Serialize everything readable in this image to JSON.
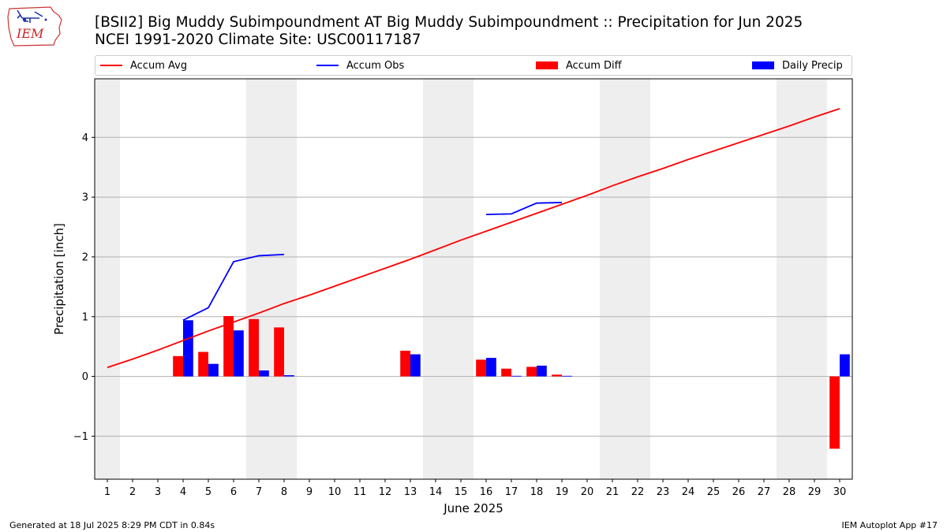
{
  "header": {
    "logo_text": "IEM",
    "title_line1": "[BSII2] Big Muddy Subimpoundment  AT Big Muddy Subimpoundment :: Precipitation for Jun 2025",
    "title_line2": "NCEI 1991-2020 Climate Site: USC00117187"
  },
  "legend": {
    "placement": "top",
    "items": [
      {
        "label": "Accum Avg",
        "kind": "line",
        "color": "#ff0000"
      },
      {
        "label": "Accum Obs",
        "kind": "line",
        "color": "#0000ff"
      },
      {
        "label": "Accum Diff",
        "kind": "patch",
        "color": "#ff0000"
      },
      {
        "label": "Daily Precip",
        "kind": "patch",
        "color": "#0000ff"
      }
    ]
  },
  "chart_data": {
    "type": "bar",
    "xlabel": "June 2025",
    "ylabel": "Precipitation [inch]",
    "xlim": [
      0.5,
      30.5
    ],
    "ylim": [
      -1.72,
      4.98
    ],
    "yticks": [
      -1,
      0,
      1,
      2,
      3,
      4
    ],
    "ytick_labels": [
      "−1",
      "0",
      "1",
      "2",
      "3",
      "4"
    ],
    "grid": "horizontal",
    "weekend_shading": [
      [
        0.5,
        1.5
      ],
      [
        6.5,
        8.5
      ],
      [
        13.5,
        15.5
      ],
      [
        20.5,
        22.5
      ],
      [
        27.5,
        29.5
      ]
    ],
    "days": [
      1,
      2,
      3,
      4,
      5,
      6,
      7,
      8,
      9,
      10,
      11,
      12,
      13,
      14,
      15,
      16,
      17,
      18,
      19,
      20,
      21,
      22,
      23,
      24,
      25,
      26,
      27,
      28,
      29,
      30
    ],
    "series": [
      {
        "name": "Accum Avg",
        "type": "line",
        "color": "#ff0000",
        "values": [
          0.15,
          0.29,
          0.44,
          0.6,
          0.76,
          0.91,
          1.06,
          1.22,
          1.36,
          1.51,
          1.66,
          1.81,
          1.96,
          2.12,
          2.28,
          2.43,
          2.58,
          2.73,
          2.88,
          3.03,
          3.19,
          3.34,
          3.48,
          3.63,
          3.77,
          3.91,
          4.05,
          4.19,
          4.34,
          4.48
        ]
      },
      {
        "name": "Accum Obs",
        "type": "line",
        "color": "#0000ff",
        "values": [
          null,
          null,
          null,
          0.94,
          1.15,
          1.92,
          2.02,
          2.04,
          null,
          null,
          null,
          null,
          null,
          null,
          null,
          2.71,
          2.72,
          2.9,
          2.91,
          null,
          null,
          null,
          null,
          null,
          null,
          null,
          null,
          null,
          null,
          null
        ]
      },
      {
        "name": "Accum Diff",
        "type": "bar",
        "color": "#ff0000",
        "values": [
          null,
          null,
          null,
          0.34,
          0.41,
          1.01,
          0.96,
          0.82,
          null,
          null,
          null,
          null,
          0.43,
          null,
          null,
          0.28,
          0.13,
          0.16,
          0.03,
          null,
          null,
          null,
          null,
          null,
          null,
          null,
          null,
          null,
          null,
          -1.21
        ]
      },
      {
        "name": "Daily Precip",
        "type": "bar",
        "color": "#0000ff",
        "values": [
          null,
          null,
          null,
          0.94,
          0.21,
          0.77,
          0.1,
          0.02,
          null,
          null,
          null,
          null,
          0.37,
          null,
          null,
          0.31,
          0.01,
          0.18,
          0.01,
          null,
          null,
          null,
          null,
          null,
          null,
          null,
          null,
          null,
          null,
          0.37
        ]
      }
    ]
  },
  "footer": {
    "left": "Generated at 18 Jul 2025 8:29 PM CDT in 0.84s",
    "right": "IEM Autoplot App #17"
  }
}
